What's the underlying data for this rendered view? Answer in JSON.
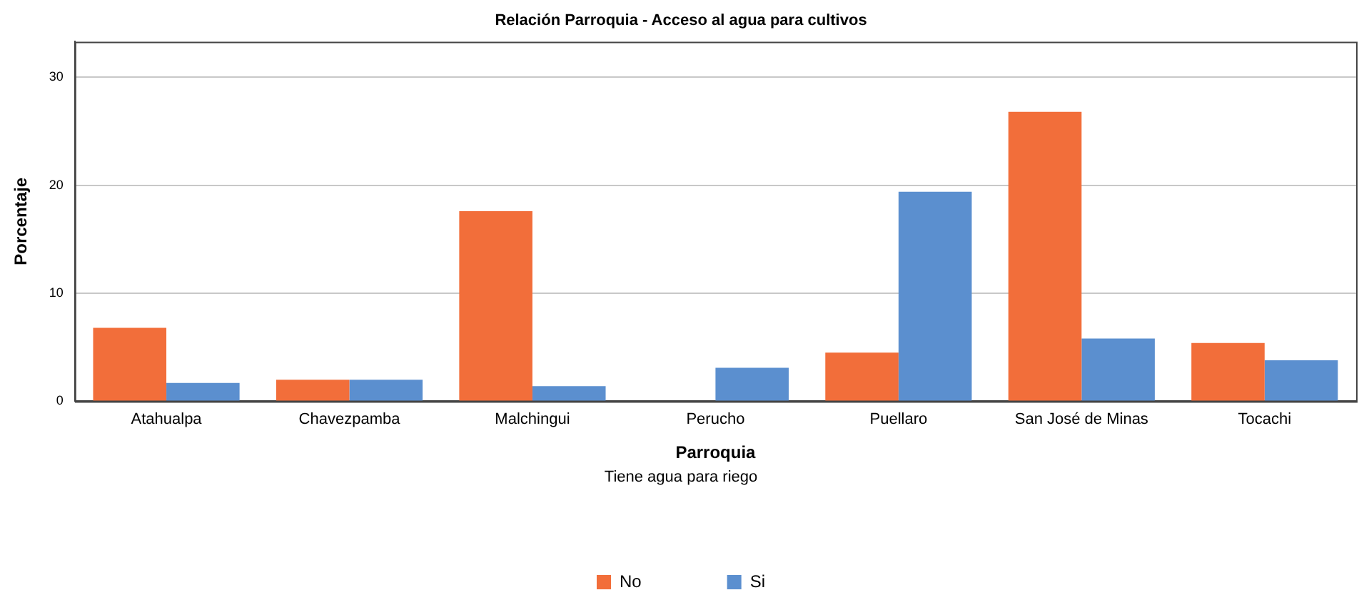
{
  "chart_data": {
    "type": "bar",
    "title": "Relación Parroquia - Acceso al agua para cultivos",
    "xlabel": "Parroquia",
    "ylabel": "Porcentaje",
    "legend_title": "Tiene agua para riego",
    "categories": [
      "Atahualpa",
      "Chavezpamba",
      "Malchingui",
      "Perucho",
      "Puellaro",
      "San José de Minas",
      "Tocachi"
    ],
    "series": [
      {
        "name": "No",
        "color": "#f26e3a",
        "values": [
          6.8,
          2.0,
          17.6,
          0,
          4.5,
          26.8,
          5.4
        ]
      },
      {
        "name": "Si",
        "color": "#5b8fcf",
        "values": [
          1.7,
          2.0,
          1.4,
          3.1,
          19.4,
          5.8,
          3.8
        ]
      }
    ],
    "ylim": [
      0,
      33.3
    ],
    "yticks": [
      0,
      10,
      20,
      30
    ],
    "grid": "y",
    "legend": "bottom"
  }
}
